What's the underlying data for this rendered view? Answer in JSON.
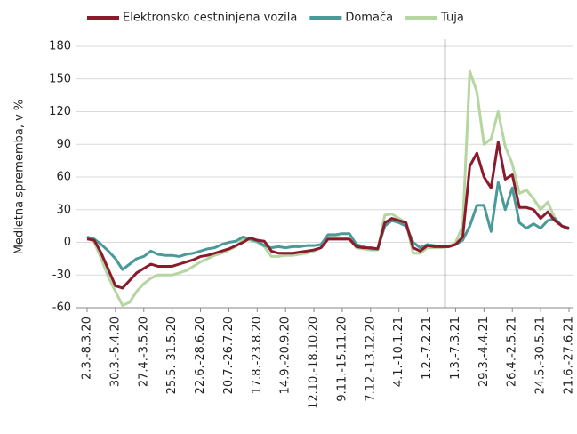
{
  "chart_data": {
    "type": "line",
    "y_label": "Medletna sprememba, v %",
    "categories": [
      "2.3.-8.3.20",
      null,
      null,
      null,
      "30.3.-5.4.20",
      null,
      null,
      null,
      "27.4.-3.5.20",
      null,
      null,
      null,
      "25.5.-31.5.20",
      null,
      null,
      null,
      "22.6.-28.6.20",
      null,
      null,
      null,
      "20.7.-26.7.20",
      null,
      null,
      null,
      "17.8.-23.8.20",
      null,
      null,
      null,
      "14.9.-20.9.20",
      null,
      null,
      null,
      "12.10.-18.10.20",
      null,
      null,
      null,
      "9.11.-15.11.20",
      null,
      null,
      null,
      "7.12.-13.12.20",
      null,
      null,
      null,
      "4.1.-10.1.21",
      null,
      null,
      null,
      "1.2.-7.2.21",
      null,
      null,
      null,
      "1.3.-7.3.21",
      null,
      null,
      null,
      "29.3.-4.4.21",
      null,
      null,
      null,
      "26.4.-2.5.21",
      null,
      null,
      null,
      "24.5.-30.5.21",
      null,
      null,
      null,
      "21.6.-27.6.21"
    ],
    "series": [
      {
        "name": "Elektronsko cestninjena vozila",
        "color": "#8b1a2b",
        "values": [
          3,
          2,
          -10,
          -25,
          -40,
          -42,
          -35,
          -28,
          -24,
          -20,
          -22,
          -22,
          -22,
          -20,
          -18,
          -16,
          -13,
          -12,
          -10,
          -8,
          -6,
          -3,
          0,
          4,
          2,
          1,
          -8,
          -10,
          -10,
          -10,
          -9,
          -8,
          -7,
          -5,
          3,
          3,
          3,
          3,
          -4,
          -5,
          -5,
          -6,
          18,
          22,
          20,
          18,
          -5,
          -8,
          -3,
          -4,
          -4,
          -4,
          -2,
          5,
          70,
          82,
          60,
          50,
          92,
          58,
          62,
          32,
          32,
          30,
          22,
          28,
          20,
          15,
          13
        ]
      },
      {
        "name": "Domača",
        "color": "#4a9a9a",
        "values": [
          5,
          3,
          -2,
          -8,
          -15,
          -25,
          -20,
          -15,
          -13,
          -8,
          -11,
          -12,
          -12,
          -13,
          -11,
          -10,
          -8,
          -6,
          -5,
          -2,
          0,
          1,
          5,
          3,
          1,
          -3,
          -5,
          -4,
          -5,
          -4,
          -4,
          -3,
          -3,
          -2,
          7,
          7,
          8,
          8,
          -2,
          -4,
          -6,
          -6,
          15,
          20,
          18,
          15,
          0,
          -5,
          -2,
          -3,
          -4,
          -4,
          -2,
          2,
          15,
          34,
          34,
          10,
          55,
          30,
          50,
          18,
          13,
          17,
          13,
          20,
          22,
          15,
          12
        ]
      },
      {
        "name": "Tuja",
        "color": "#b5d6a0",
        "values": [
          5,
          0,
          -15,
          -32,
          -45,
          -58,
          -55,
          -45,
          -38,
          -33,
          -30,
          -30,
          -30,
          -28,
          -26,
          -22,
          -18,
          -15,
          -12,
          -10,
          -7,
          -4,
          3,
          2,
          0,
          -4,
          -13,
          -13,
          -12,
          -12,
          -11,
          -10,
          -8,
          -5,
          5,
          5,
          4,
          3,
          -5,
          -6,
          -7,
          -7,
          25,
          26,
          22,
          18,
          -10,
          -10,
          -5,
          -5,
          -5,
          -4,
          0,
          15,
          157,
          138,
          90,
          95,
          120,
          88,
          72,
          45,
          48,
          40,
          30,
          37,
          22,
          15,
          12
        ]
      }
    ],
    "ylim": [
      -60,
      180
    ],
    "yticks": [
      -60,
      -30,
      0,
      30,
      60,
      90,
      120,
      150,
      180
    ],
    "grid": true
  }
}
